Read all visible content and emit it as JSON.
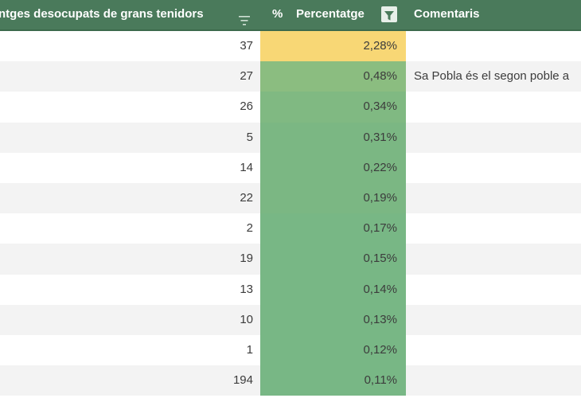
{
  "header": {
    "col_houses": "ntges desocupats de grans tenidors",
    "col_pct_symbol": "%",
    "col_pct": "Percentatge",
    "col_comments": "Comentaris",
    "sort_icon": "sort-lines-icon",
    "filter_icon": "funnel-filter-icon"
  },
  "colors": {
    "header_bg": "#4a7a5b",
    "highlight_yellow": "#f8d775",
    "green_scale": [
      "#8bbd80",
      "#80b982",
      "#7bb783",
      "#78b785"
    ]
  },
  "rows": [
    {
      "count": "37",
      "pct": "2,28%",
      "comment": ""
    },
    {
      "count": "27",
      "pct": "0,48%",
      "comment": "Sa Pobla és el segon poble a"
    },
    {
      "count": "26",
      "pct": "0,34%",
      "comment": ""
    },
    {
      "count": "5",
      "pct": "0,31%",
      "comment": ""
    },
    {
      "count": "14",
      "pct": "0,22%",
      "comment": ""
    },
    {
      "count": "22",
      "pct": "0,19%",
      "comment": ""
    },
    {
      "count": "2",
      "pct": "0,17%",
      "comment": ""
    },
    {
      "count": "19",
      "pct": "0,15%",
      "comment": ""
    },
    {
      "count": "13",
      "pct": "0,14%",
      "comment": ""
    },
    {
      "count": "10",
      "pct": "0,13%",
      "comment": ""
    },
    {
      "count": "1",
      "pct": "0,12%",
      "comment": ""
    },
    {
      "count": "194",
      "pct": "0,11%",
      "comment": ""
    }
  ]
}
